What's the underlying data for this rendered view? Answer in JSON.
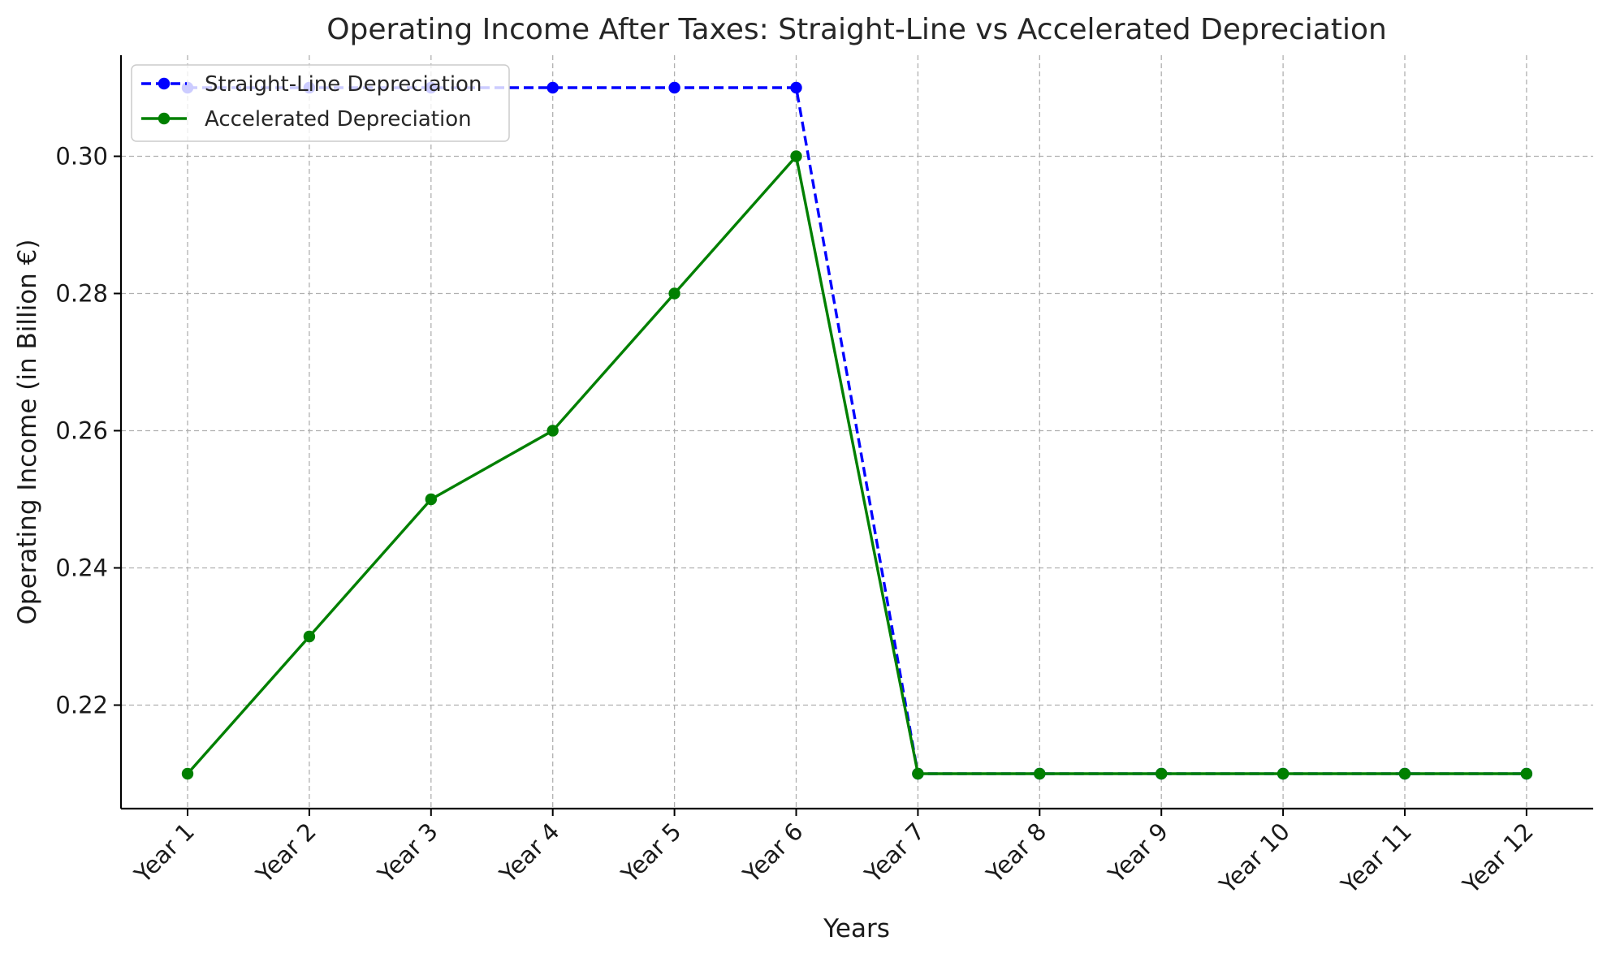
{
  "chart_data": {
    "type": "line",
    "title": "Operating Income After Taxes: Straight-Line vs Accelerated Depreciation",
    "xlabel": "Years",
    "ylabel": "Operating Income (in Billion €)",
    "categories": [
      "Year 1",
      "Year 2",
      "Year 3",
      "Year 4",
      "Year 5",
      "Year 6",
      "Year 7",
      "Year 8",
      "Year 9",
      "Year 10",
      "Year 11",
      "Year 12"
    ],
    "yticks": [
      "0.22",
      "0.24",
      "0.26",
      "0.28",
      "0.30"
    ],
    "ylim": [
      0.205,
      0.315
    ],
    "grid": true,
    "legend_position": "top-left",
    "series": [
      {
        "name": "Straight-Line Depreciation",
        "color": "#0000ff",
        "line_style": "dashed",
        "marker": "circle",
        "values": [
          0.31,
          0.31,
          0.31,
          0.31,
          0.31,
          0.31,
          0.21,
          0.21,
          0.21,
          0.21,
          0.21,
          0.21
        ]
      },
      {
        "name": "Accelerated Depreciation",
        "color": "#008000",
        "line_style": "solid",
        "marker": "circle",
        "values": [
          0.21,
          0.23,
          0.25,
          0.26,
          0.28,
          0.3,
          0.21,
          0.21,
          0.21,
          0.21,
          0.21,
          0.21
        ]
      }
    ]
  }
}
